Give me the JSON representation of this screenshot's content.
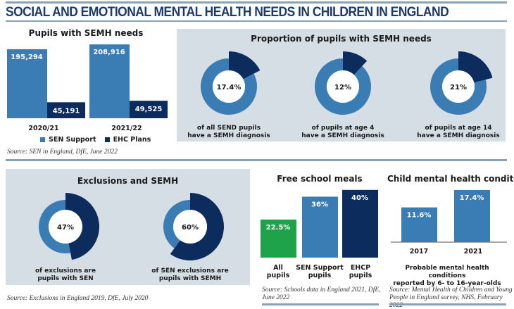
{
  "title": "SOCIAL AND EMOTIONAL MENTAL HEALTH NEEDS IN CHILDREN IN ENGLAND",
  "colors": {
    "sen_support": "#3a7cb4",
    "ehc": "#0d2c5e",
    "green": "#1fa34a",
    "panel": "#d6dee5",
    "title": "#1c3a6b"
  },
  "chart_data": [
    {
      "type": "bar",
      "title": "Pupils with SEMH needs",
      "categories": [
        "2020/21",
        "2021/22"
      ],
      "series": [
        {
          "name": "SEN Support",
          "values": [
            195294,
            208916
          ],
          "labels": [
            "195,294",
            "208,916"
          ]
        },
        {
          "name": "EHC Plans",
          "values": [
            45191,
            49525
          ],
          "labels": [
            "45,191",
            "49,525"
          ]
        }
      ],
      "legend": "bottom",
      "source": "Source: SEN in England, DfE, June 2022"
    },
    {
      "type": "pie",
      "title": "Proportion of pupils with SEMH needs",
      "donuts": [
        {
          "value": 17.4,
          "label": "17.4%",
          "caption": [
            "of all SEND pupils",
            "have a SEMH diagnosis"
          ]
        },
        {
          "value": 12,
          "label": "12%",
          "caption": [
            "of pupils at age 4",
            "have a SEMH diagnosis"
          ]
        },
        {
          "value": 21,
          "label": "21%",
          "caption": [
            "of pupils at age 14",
            "have a SEMH diagnosis"
          ]
        }
      ]
    },
    {
      "type": "pie",
      "title": "Exclusions and SEMH",
      "donuts": [
        {
          "value": 47,
          "label": "47%",
          "caption": [
            "of exclusions are",
            "pupils with SEN"
          ]
        },
        {
          "value": 60,
          "label": "60%",
          "caption": [
            "of SEN exclusions are",
            "pupils with SEMH"
          ]
        }
      ],
      "source": "Source: Exclusions in England 2019, DfE, July 2020"
    },
    {
      "type": "bar",
      "title": "Free school meals",
      "categories": [
        [
          "All",
          "pupils"
        ],
        [
          "SEN Support",
          "pupils"
        ],
        [
          "EHCP",
          "pupils"
        ]
      ],
      "values": [
        22.5,
        36,
        40
      ],
      "labels": [
        "22.5%",
        "36%",
        "40%"
      ],
      "source": [
        "Source: Schools data in England 2021, DfE,",
        "June 2022"
      ]
    },
    {
      "type": "bar",
      "title": "Child mental health conditions",
      "categories": [
        "2017",
        "2021"
      ],
      "values": [
        11.6,
        17.4
      ],
      "labels": [
        "11.6%",
        "17.4%"
      ],
      "caption": [
        "Probable mental health conditions",
        "reported by 6- to 16-year-olds"
      ],
      "source": [
        "Source: Mental Health of Children and Young",
        "People in England survey, NHS, February 2022"
      ]
    }
  ]
}
